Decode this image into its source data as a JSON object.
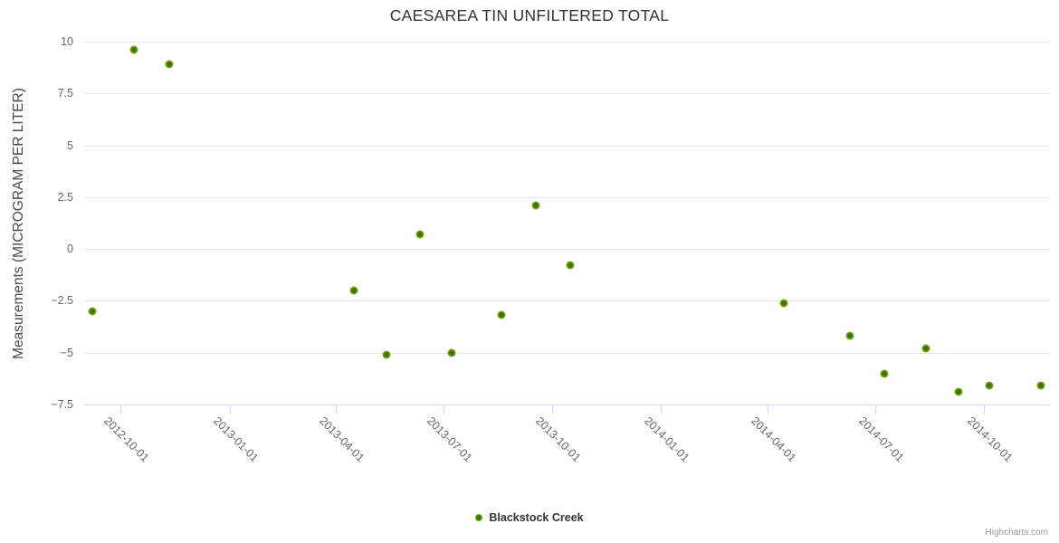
{
  "title": "CAESAREA TIN UNFILTERED TOTAL",
  "legend": {
    "series_label": "Blackstock Creek"
  },
  "credit": "Highcharts.com",
  "colors": {
    "marker_green": "#72b20e",
    "marker_center": "#3f6e00",
    "gridline": "#e6e6e6",
    "axis_line": "#ccd6eb",
    "title_text": "#333333",
    "axis_label_text": "#666666"
  },
  "chart_data": {
    "type": "scatter",
    "title": "CAESAREA TIN UNFILTERED TOTAL",
    "xlabel": "",
    "ylabel": "Measurements (MICROGRAM PER LITER)",
    "grid": "horizontal",
    "legend_position": "bottom-center",
    "xlim": [
      "2012-08-31",
      "2014-11-26"
    ],
    "ylim": [
      -7.5,
      10
    ],
    "x_ticks": [
      "2012-10-01",
      "2013-01-01",
      "2013-04-01",
      "2013-07-01",
      "2013-10-01",
      "2014-01-01",
      "2014-04-01",
      "2014-07-01",
      "2014-10-01"
    ],
    "y_ticks": [
      10,
      7.5,
      5,
      2.5,
      0,
      -2.5,
      -5,
      -7.5
    ],
    "y_tick_labels": [
      "10",
      "7.5",
      "5",
      "2.5",
      "0",
      "−2.5",
      "−5",
      "−7.5"
    ],
    "series": [
      {
        "name": "Blackstock Creek",
        "color": "#72b20e",
        "points": [
          {
            "x": "2012-09-07",
            "y": -3.0
          },
          {
            "x": "2012-10-12",
            "y": 9.6
          },
          {
            "x": "2012-11-11",
            "y": 8.9
          },
          {
            "x": "2013-04-16",
            "y": -2.0
          },
          {
            "x": "2013-05-14",
            "y": -5.1
          },
          {
            "x": "2013-06-11",
            "y": 0.7
          },
          {
            "x": "2013-07-08",
            "y": -5.0
          },
          {
            "x": "2013-08-19",
            "y": -3.2
          },
          {
            "x": "2013-09-17",
            "y": 2.1
          },
          {
            "x": "2013-10-16",
            "y": -0.8
          },
          {
            "x": "2014-04-15",
            "y": -2.6
          },
          {
            "x": "2014-06-10",
            "y": -4.2
          },
          {
            "x": "2014-07-09",
            "y": -6.0
          },
          {
            "x": "2014-08-13",
            "y": -4.8
          },
          {
            "x": "2014-09-10",
            "y": -6.9
          },
          {
            "x": "2014-10-06",
            "y": -6.6
          },
          {
            "x": "2014-11-18",
            "y": -6.6
          }
        ]
      }
    ]
  }
}
